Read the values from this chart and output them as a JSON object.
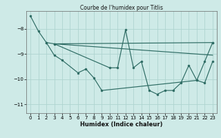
{
  "title": "Courbe de l'humidex pour Titlis",
  "xlabel": "Humidex (Indice chaleur)",
  "background_color": "#ceeae7",
  "grid_color": "#aed4d0",
  "line_color": "#2d6b63",
  "xlim": [
    -0.5,
    23.5
  ],
  "ylim": [
    -11.35,
    -7.3
  ],
  "yticks": [
    -11,
    -10,
    -9,
    -8
  ],
  "xticks": [
    0,
    1,
    2,
    3,
    4,
    5,
    6,
    7,
    8,
    9,
    10,
    11,
    12,
    13,
    14,
    15,
    16,
    17,
    18,
    19,
    20,
    21,
    22,
    23
  ],
  "series1": [
    [
      0,
      -7.5
    ],
    [
      1,
      -8.1
    ],
    [
      2,
      -8.55
    ],
    [
      3,
      -8.6
    ],
    [
      23,
      -8.55
    ]
  ],
  "series2": [
    [
      2,
      -8.55
    ],
    [
      3,
      -9.05
    ],
    [
      4,
      -9.25
    ],
    [
      6,
      -9.75
    ],
    [
      7,
      -9.6
    ],
    [
      8,
      -9.95
    ],
    [
      9,
      -10.45
    ],
    [
      21,
      -10.05
    ],
    [
      22,
      -10.15
    ],
    [
      23,
      -9.3
    ]
  ],
  "series3": [
    [
      3,
      -8.6
    ],
    [
      10,
      -9.55
    ],
    [
      11,
      -9.55
    ],
    [
      12,
      -8.05
    ],
    [
      13,
      -9.55
    ],
    [
      14,
      -9.3
    ],
    [
      15,
      -10.45
    ],
    [
      16,
      -10.6
    ],
    [
      17,
      -10.45
    ],
    [
      18,
      -10.45
    ],
    [
      19,
      -10.15
    ],
    [
      20,
      -9.45
    ],
    [
      21,
      -10.05
    ],
    [
      22,
      -9.3
    ],
    [
      23,
      -8.55
    ]
  ],
  "series4": [
    [
      3,
      -8.6
    ],
    [
      23,
      -9.05
    ]
  ]
}
